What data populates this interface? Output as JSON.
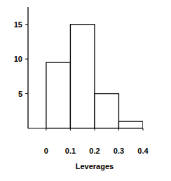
{
  "chart_data": {
    "type": "histogram",
    "bins": [
      0,
      0.1,
      0.2,
      0.3,
      0.4
    ],
    "values": [
      9.5,
      15,
      5,
      1
    ],
    "color": "#ffffff",
    "xlabel": "Leverages",
    "xlim": [
      -0.075,
      0.4
    ],
    "xticks": [
      0,
      0.1,
      0.2,
      0.3,
      0.4
    ],
    "ylim": [
      0,
      17.5
    ],
    "yticks": [
      5,
      10,
      15
    ],
    "grid": false
  }
}
